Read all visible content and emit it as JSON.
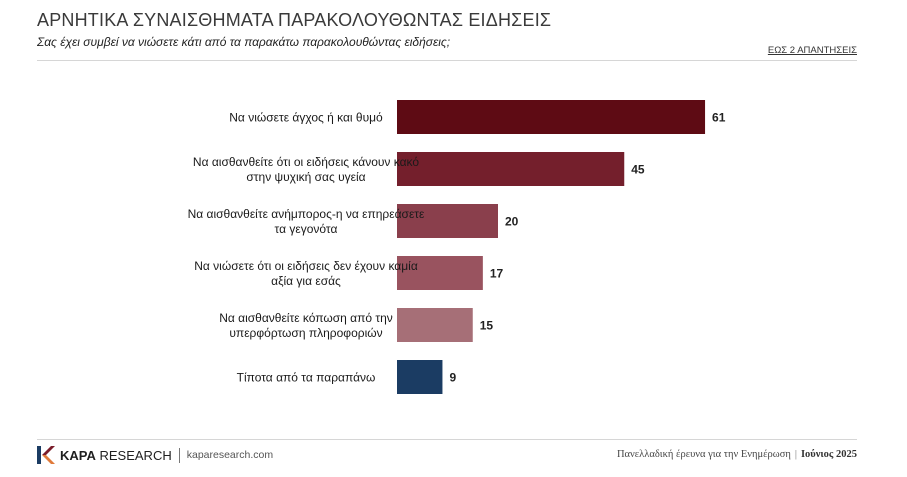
{
  "header": {
    "title": "ΑΡΝΗΤΙΚΑ ΣΥΝΑΙΣΘΗΜΑΤΑ ΠΑΡΑΚΟΛΟΥΘΩΝΤΑΣ ΕΙΔΗΣΕΙΣ",
    "subtitle": "Σας έχει συμβεί να νιώσετε κάτι από τα παρακάτω παρακολουθώντας ειδήσεις;",
    "note": "ΕΩΣ 2 ΑΠΑΝΤΗΣΕΙΣ"
  },
  "chart_data": {
    "type": "bar",
    "orientation": "horizontal",
    "categories": [
      [
        "Να νιώσετε άγχος ή και θυμό"
      ],
      [
        "Να αισθανθείτε ότι οι ειδήσεις κάνουν κακό",
        "στην ψυχική σας υγεία"
      ],
      [
        "Να αισθανθείτε ανήμπορος-η να επηρεάσετε",
        "τα γεγονότα"
      ],
      [
        "Να νιώσετε ότι οι ειδήσεις δεν έχουν καμία",
        "αξία για εσάς"
      ],
      [
        "Να αισθανθείτε κόπωση από την",
        "υπερφόρτωση πληροφοριών"
      ],
      [
        "Τίποτα από τα παραπάνω"
      ]
    ],
    "values": [
      61,
      45,
      20,
      17,
      15,
      9
    ],
    "colors": [
      "#5e0b14",
      "#741f2c",
      "#8a3f4c",
      "#99535f",
      "#a66f77",
      "#1b3c63"
    ],
    "data_labels": true,
    "grid": false,
    "legend": "none"
  },
  "footer": {
    "logo_text_bold": "KAPA",
    "logo_text": " RESEARCH",
    "website": "kaparesearch.com",
    "survey": "Πανελλαδική έρευνα για την Ενημέρωση",
    "divider": "|",
    "date": "Ιούνιος 2025",
    "logo_colors": [
      "#1b3c63",
      "#7a1c2a",
      "#e07a3a"
    ]
  }
}
